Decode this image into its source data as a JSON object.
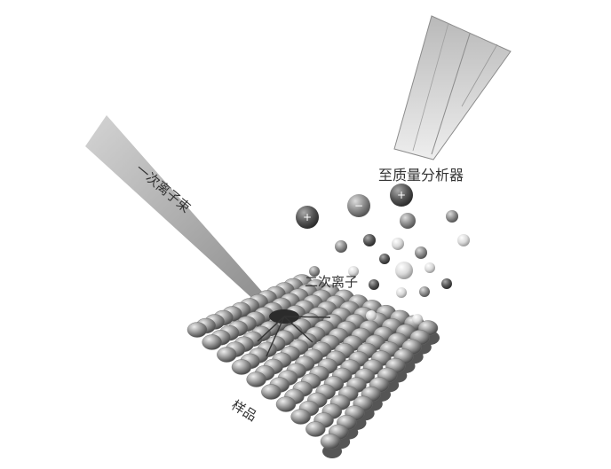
{
  "labels": {
    "primary_beam": "一次离子束",
    "mass_analyzer": "至质量分析器",
    "secondary_ions": "二次离子",
    "sample": "样品"
  },
  "ion_symbols": {
    "positive": "+",
    "negative": "−"
  },
  "colors": {
    "background": "#ffffff",
    "beam": "#bdbdbd",
    "analyzer": "#c8c8c8",
    "ion_dark": "#555555",
    "ion_mid": "#8a8a8a",
    "ion_light": "#d9d9d9",
    "sample_atom": "#9a9a9a"
  }
}
